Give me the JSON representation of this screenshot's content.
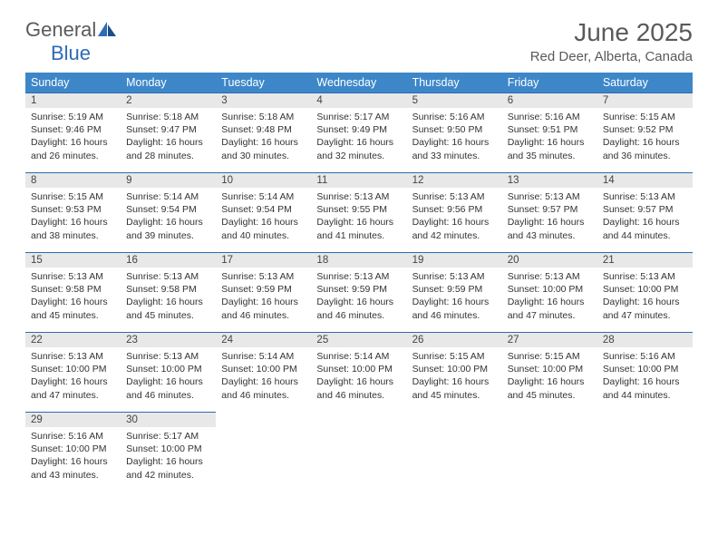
{
  "logo": {
    "general": "General",
    "blue": "Blue"
  },
  "title": "June 2025",
  "location": "Red Deer, Alberta, Canada",
  "dayHeaders": [
    "Sunday",
    "Monday",
    "Tuesday",
    "Wednesday",
    "Thursday",
    "Friday",
    "Saturday"
  ],
  "colors": {
    "header_bg": "#3d87c9",
    "header_text": "#ffffff",
    "border": "#2d6bb5",
    "daynum_bg": "#e8e8e8",
    "logo_gray": "#5a5a5a",
    "logo_blue": "#2d6bb5"
  },
  "weeks": [
    [
      {
        "n": "1",
        "sr": "Sunrise: 5:19 AM",
        "ss": "Sunset: 9:46 PM",
        "dl": "Daylight: 16 hours and 26 minutes."
      },
      {
        "n": "2",
        "sr": "Sunrise: 5:18 AM",
        "ss": "Sunset: 9:47 PM",
        "dl": "Daylight: 16 hours and 28 minutes."
      },
      {
        "n": "3",
        "sr": "Sunrise: 5:18 AM",
        "ss": "Sunset: 9:48 PM",
        "dl": "Daylight: 16 hours and 30 minutes."
      },
      {
        "n": "4",
        "sr": "Sunrise: 5:17 AM",
        "ss": "Sunset: 9:49 PM",
        "dl": "Daylight: 16 hours and 32 minutes."
      },
      {
        "n": "5",
        "sr": "Sunrise: 5:16 AM",
        "ss": "Sunset: 9:50 PM",
        "dl": "Daylight: 16 hours and 33 minutes."
      },
      {
        "n": "6",
        "sr": "Sunrise: 5:16 AM",
        "ss": "Sunset: 9:51 PM",
        "dl": "Daylight: 16 hours and 35 minutes."
      },
      {
        "n": "7",
        "sr": "Sunrise: 5:15 AM",
        "ss": "Sunset: 9:52 PM",
        "dl": "Daylight: 16 hours and 36 minutes."
      }
    ],
    [
      {
        "n": "8",
        "sr": "Sunrise: 5:15 AM",
        "ss": "Sunset: 9:53 PM",
        "dl": "Daylight: 16 hours and 38 minutes."
      },
      {
        "n": "9",
        "sr": "Sunrise: 5:14 AM",
        "ss": "Sunset: 9:54 PM",
        "dl": "Daylight: 16 hours and 39 minutes."
      },
      {
        "n": "10",
        "sr": "Sunrise: 5:14 AM",
        "ss": "Sunset: 9:54 PM",
        "dl": "Daylight: 16 hours and 40 minutes."
      },
      {
        "n": "11",
        "sr": "Sunrise: 5:13 AM",
        "ss": "Sunset: 9:55 PM",
        "dl": "Daylight: 16 hours and 41 minutes."
      },
      {
        "n": "12",
        "sr": "Sunrise: 5:13 AM",
        "ss": "Sunset: 9:56 PM",
        "dl": "Daylight: 16 hours and 42 minutes."
      },
      {
        "n": "13",
        "sr": "Sunrise: 5:13 AM",
        "ss": "Sunset: 9:57 PM",
        "dl": "Daylight: 16 hours and 43 minutes."
      },
      {
        "n": "14",
        "sr": "Sunrise: 5:13 AM",
        "ss": "Sunset: 9:57 PM",
        "dl": "Daylight: 16 hours and 44 minutes."
      }
    ],
    [
      {
        "n": "15",
        "sr": "Sunrise: 5:13 AM",
        "ss": "Sunset: 9:58 PM",
        "dl": "Daylight: 16 hours and 45 minutes."
      },
      {
        "n": "16",
        "sr": "Sunrise: 5:13 AM",
        "ss": "Sunset: 9:58 PM",
        "dl": "Daylight: 16 hours and 45 minutes."
      },
      {
        "n": "17",
        "sr": "Sunrise: 5:13 AM",
        "ss": "Sunset: 9:59 PM",
        "dl": "Daylight: 16 hours and 46 minutes."
      },
      {
        "n": "18",
        "sr": "Sunrise: 5:13 AM",
        "ss": "Sunset: 9:59 PM",
        "dl": "Daylight: 16 hours and 46 minutes."
      },
      {
        "n": "19",
        "sr": "Sunrise: 5:13 AM",
        "ss": "Sunset: 9:59 PM",
        "dl": "Daylight: 16 hours and 46 minutes."
      },
      {
        "n": "20",
        "sr": "Sunrise: 5:13 AM",
        "ss": "Sunset: 10:00 PM",
        "dl": "Daylight: 16 hours and 47 minutes."
      },
      {
        "n": "21",
        "sr": "Sunrise: 5:13 AM",
        "ss": "Sunset: 10:00 PM",
        "dl": "Daylight: 16 hours and 47 minutes."
      }
    ],
    [
      {
        "n": "22",
        "sr": "Sunrise: 5:13 AM",
        "ss": "Sunset: 10:00 PM",
        "dl": "Daylight: 16 hours and 47 minutes."
      },
      {
        "n": "23",
        "sr": "Sunrise: 5:13 AM",
        "ss": "Sunset: 10:00 PM",
        "dl": "Daylight: 16 hours and 46 minutes."
      },
      {
        "n": "24",
        "sr": "Sunrise: 5:14 AM",
        "ss": "Sunset: 10:00 PM",
        "dl": "Daylight: 16 hours and 46 minutes."
      },
      {
        "n": "25",
        "sr": "Sunrise: 5:14 AM",
        "ss": "Sunset: 10:00 PM",
        "dl": "Daylight: 16 hours and 46 minutes."
      },
      {
        "n": "26",
        "sr": "Sunrise: 5:15 AM",
        "ss": "Sunset: 10:00 PM",
        "dl": "Daylight: 16 hours and 45 minutes."
      },
      {
        "n": "27",
        "sr": "Sunrise: 5:15 AM",
        "ss": "Sunset: 10:00 PM",
        "dl": "Daylight: 16 hours and 45 minutes."
      },
      {
        "n": "28",
        "sr": "Sunrise: 5:16 AM",
        "ss": "Sunset: 10:00 PM",
        "dl": "Daylight: 16 hours and 44 minutes."
      }
    ],
    [
      {
        "n": "29",
        "sr": "Sunrise: 5:16 AM",
        "ss": "Sunset: 10:00 PM",
        "dl": "Daylight: 16 hours and 43 minutes."
      },
      {
        "n": "30",
        "sr": "Sunrise: 5:17 AM",
        "ss": "Sunset: 10:00 PM",
        "dl": "Daylight: 16 hours and 42 minutes."
      },
      null,
      null,
      null,
      null,
      null
    ]
  ]
}
